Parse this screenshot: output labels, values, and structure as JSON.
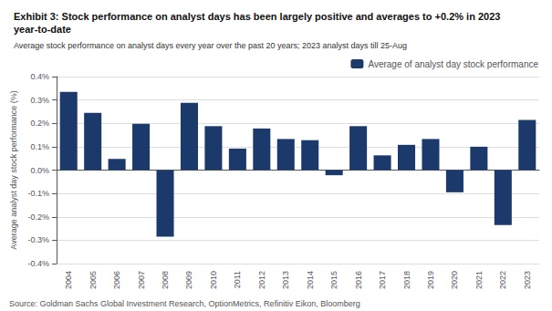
{
  "chart_data": {
    "type": "bar",
    "title": "Exhibit 3: Stock performance on analyst days has been largely positive and averages to +0.2% in 2023 year-to-date",
    "subtitle": "Average stock performance on analyst days every year over the past 20 years; 2023 analyst days till 25-Aug",
    "ylabel": "Average analyst day stock performance (%)",
    "annotations": [
      "Source: Goldman Sachs Global Investment Research, OptionMetrics, Refinitiv Eikon, Bloomberg"
    ],
    "categories": [
      "2004",
      "2005",
      "2006",
      "2007",
      "2008",
      "2009",
      "2010",
      "2011",
      "2012",
      "2013",
      "2014",
      "2015",
      "2016",
      "2017",
      "2018",
      "2019",
      "2020",
      "2021",
      "2022",
      "2023"
    ],
    "series": [
      {
        "name": "Average of analyst day stock performance",
        "color": "#1b3a6b",
        "values": [
          0.335,
          0.245,
          0.048,
          0.198,
          -0.285,
          0.288,
          0.188,
          0.092,
          0.178,
          0.133,
          0.128,
          -0.022,
          0.188,
          0.063,
          0.108,
          0.133,
          -0.095,
          0.1,
          -0.235,
          0.215
        ]
      }
    ],
    "ylim": [
      -0.4,
      0.4
    ],
    "yticks": [
      {
        "value": -0.4,
        "label": "-0.4%"
      },
      {
        "value": -0.3,
        "label": "-0.3%"
      },
      {
        "value": -0.2,
        "label": "-0.2%"
      },
      {
        "value": -0.1,
        "label": "-0.1%"
      },
      {
        "value": 0.0,
        "label": "0.0%"
      },
      {
        "value": 0.1,
        "label": "0.1%"
      },
      {
        "value": 0.2,
        "label": "0.2%"
      },
      {
        "value": 0.3,
        "label": "0.3%"
      },
      {
        "value": 0.4,
        "label": "0.4%"
      }
    ],
    "grid": true,
    "legend": "upper right"
  }
}
